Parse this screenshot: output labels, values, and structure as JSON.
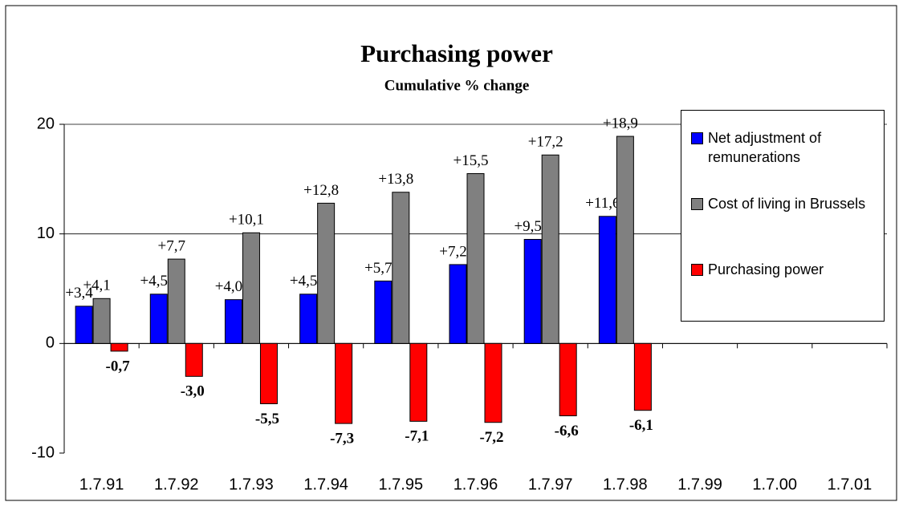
{
  "chart_data": {
    "type": "bar",
    "title": "Purchasing power",
    "subtitle": "Cumulative % change",
    "categories": [
      "1.7.91",
      "1.7.92",
      "1.7.93",
      "1.7.94",
      "1.7.95",
      "1.7.96",
      "1.7.97",
      "1.7.98",
      "1.7.99",
      "1.7.00",
      "1.7.01"
    ],
    "series": [
      {
        "name": "Net adjustment of remunerations",
        "color": "#0000ff",
        "values": [
          3.4,
          4.5,
          4.0,
          4.5,
          5.7,
          7.2,
          9.5,
          11.6,
          null,
          null,
          null
        ],
        "value_labels": [
          "+3,4",
          "+4,5",
          "+4,0",
          "+4,5",
          "+5,7",
          "+7,2",
          "+9,5",
          "+11,6",
          null,
          null,
          null
        ]
      },
      {
        "name": "Cost of living in Brussels",
        "color": "#808080",
        "values": [
          4.1,
          7.7,
          10.1,
          12.8,
          13.8,
          15.5,
          17.2,
          18.9,
          null,
          null,
          null
        ],
        "value_labels": [
          "+4,1",
          "+7,7",
          "+10,1",
          "+12,8",
          "+13,8",
          "+15,5",
          "+17,2",
          "+18,9",
          null,
          null,
          null
        ]
      },
      {
        "name": "Purchasing power",
        "color": "#ff0000",
        "values": [
          -0.7,
          -3.0,
          -5.5,
          -7.3,
          -7.1,
          -7.2,
          -6.6,
          -6.1,
          null,
          null,
          null
        ],
        "value_labels": [
          "-0,7",
          "-3,0",
          "-5,5",
          "-7,3",
          "-7,1",
          "-7,2",
          "-6,6",
          "-6,1",
          null,
          null,
          null
        ]
      }
    ],
    "ylim": [
      -10,
      20
    ],
    "yticks": [
      -10,
      0,
      10,
      20
    ],
    "grid": true,
    "legend": "right"
  }
}
